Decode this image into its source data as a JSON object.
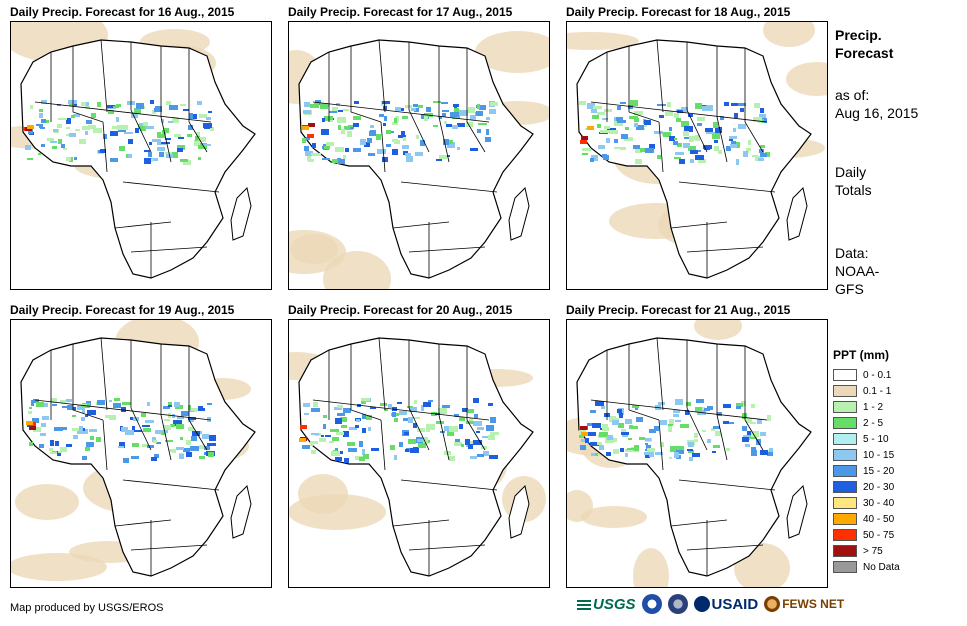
{
  "panels": [
    {
      "title": "Daily Precip. Forecast for 16 Aug., 2015"
    },
    {
      "title": "Daily Precip. Forecast for 17 Aug., 2015"
    },
    {
      "title": "Daily Precip. Forecast for 18 Aug., 2015"
    },
    {
      "title": "Daily Precip. Forecast for 19 Aug., 2015"
    },
    {
      "title": "Daily Precip. Forecast for 20 Aug., 2015"
    },
    {
      "title": "Daily Precip. Forecast for 21 Aug., 2015"
    }
  ],
  "side_info": {
    "product_title_1": "Precip.",
    "product_title_2": "Forecast",
    "as_of_label": "as of:",
    "as_of_date": "Aug 16, 2015",
    "totals_1": "Daily",
    "totals_2": "Totals",
    "data_label": "Data:",
    "data_source_1": "NOAA-",
    "data_source_2": "GFS"
  },
  "legend": {
    "title": "PPT (mm)",
    "items": [
      {
        "label": "0 - 0.1",
        "color": "#ffffff"
      },
      {
        "label": "0.1 - 1",
        "color": "#ecd8b8"
      },
      {
        "label": "1 - 2",
        "color": "#b8f0b0"
      },
      {
        "label": "2 - 5",
        "color": "#66dd66"
      },
      {
        "label": "5 - 10",
        "color": "#b0eef0"
      },
      {
        "label": "10 - 15",
        "color": "#8cc8f0"
      },
      {
        "label": "15 - 20",
        "color": "#4c98e8"
      },
      {
        "label": "20 - 30",
        "color": "#1e5ee0"
      },
      {
        "label": "30 - 40",
        "color": "#ffe680"
      },
      {
        "label": "40 - 50",
        "color": "#ffa800"
      },
      {
        "label": "50 - 75",
        "color": "#ff3000"
      },
      {
        "label": "> 75",
        "color": "#a01010"
      },
      {
        "label": "No Data",
        "color": "#999999"
      }
    ]
  },
  "footer": {
    "credit": "Map produced by USGS/EROS"
  },
  "logos": {
    "usgs": "USGS",
    "usaid": "USAID",
    "fews": "FEWS NET"
  }
}
